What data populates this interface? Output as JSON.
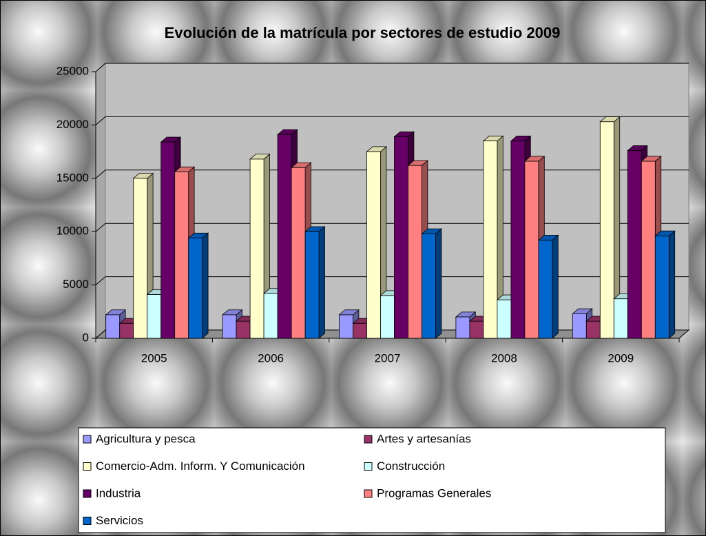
{
  "chart_data": {
    "type": "bar3d",
    "title": "Evolución de la matrícula por sectores de estudio 2009",
    "categories": [
      "2005",
      "2006",
      "2007",
      "2008",
      "2009"
    ],
    "series": [
      {
        "name": "Agricultura y pesca",
        "color": "#9999ff",
        "values": [
          2200,
          2200,
          2200,
          2000,
          2300
        ]
      },
      {
        "name": "Artes y artesanías",
        "color": "#993366",
        "values": [
          1400,
          1600,
          1400,
          1600,
          1600
        ]
      },
      {
        "name": "Comercio-Adm. Inform. Y Comunicación",
        "color": "#ffffcc",
        "values": [
          15000,
          16800,
          17500,
          18500,
          20300
        ]
      },
      {
        "name": "Construcción",
        "color": "#ccffff",
        "values": [
          4100,
          4200,
          4000,
          3600,
          3700
        ]
      },
      {
        "name": "Industria",
        "color": "#660066",
        "values": [
          18400,
          19100,
          18900,
          18500,
          17600
        ]
      },
      {
        "name": "Programas Generales",
        "color": "#ff8080",
        "values": [
          15600,
          16000,
          16200,
          16600,
          16600
        ]
      },
      {
        "name": "Servicios",
        "color": "#0066cc",
        "values": [
          9400,
          10000,
          9800,
          9200,
          9600
        ]
      }
    ],
    "ylim": [
      0,
      25000
    ],
    "yticks": [
      0,
      5000,
      10000,
      15000,
      20000,
      25000
    ],
    "grid": true,
    "legend": "bottom"
  }
}
